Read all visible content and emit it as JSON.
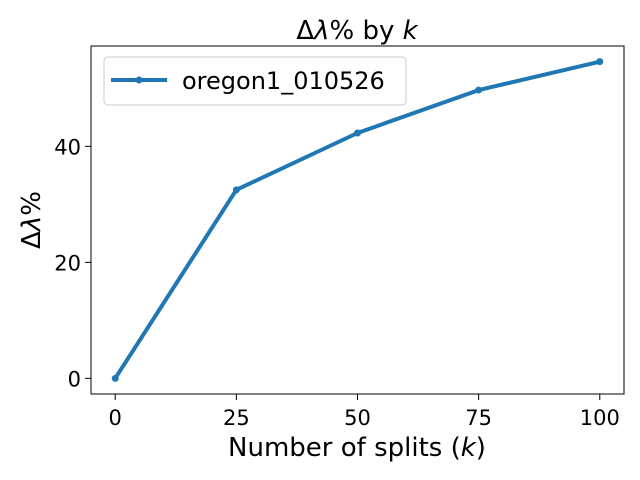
{
  "chart_data": {
    "type": "line",
    "title": "Δλ% by k",
    "title_parts": [
      "Δ",
      "λ",
      "% by ",
      "k"
    ],
    "xlabel": "Number of splits (k)",
    "xlabel_parts": [
      "Number of splits (",
      "k",
      ")"
    ],
    "ylabel": "Δλ%",
    "ylabel_parts": [
      "Δ",
      "λ",
      "%"
    ],
    "x": [
      0,
      25,
      50,
      75,
      100
    ],
    "xlim": [
      -5,
      105
    ],
    "ylim": [
      -2.7,
      57.3
    ],
    "xticks": [
      0,
      25,
      50,
      75,
      100
    ],
    "yticks": [
      0,
      20,
      40
    ],
    "grid": false,
    "legend_position": "top-left",
    "series": [
      {
        "name": "oregon1_010526",
        "color": "#1f77b4",
        "marker": "circle",
        "values": [
          0,
          32.5,
          42.3,
          49.7,
          54.6
        ]
      }
    ]
  }
}
